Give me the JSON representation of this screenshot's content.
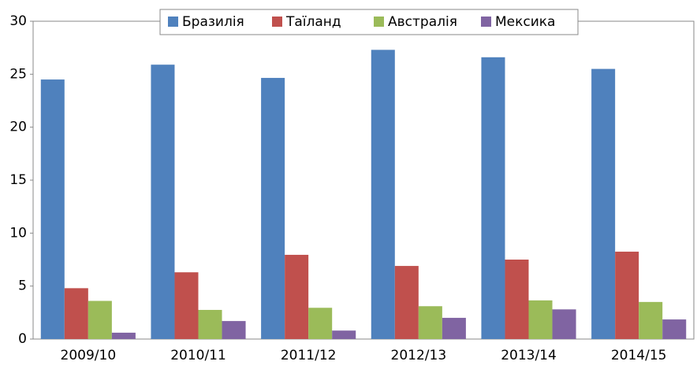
{
  "chart_data": {
    "type": "bar",
    "categories": [
      "2009/10",
      "2010/11",
      "2011/12",
      "2012/13",
      "2013/14",
      "2014/15"
    ],
    "series": [
      {
        "name": "Бразилія",
        "color": "#4f81bd",
        "values": [
          24.5,
          25.9,
          24.65,
          27.3,
          26.6,
          25.5
        ]
      },
      {
        "name": "Таїланд",
        "color": "#c0504d",
        "values": [
          4.8,
          6.3,
          7.95,
          6.9,
          7.5,
          8.25
        ]
      },
      {
        "name": "Австралія",
        "color": "#9bbb59",
        "values": [
          3.6,
          2.75,
          2.95,
          3.1,
          3.65,
          3.5
        ]
      },
      {
        "name": "Мексика",
        "color": "#8064a2",
        "values": [
          0.6,
          1.7,
          0.8,
          2.0,
          2.8,
          1.85
        ]
      }
    ],
    "ylim": [
      0,
      30
    ],
    "yticks": [
      0,
      5,
      10,
      15,
      20,
      25,
      30
    ],
    "grid": false,
    "legend": "top"
  }
}
